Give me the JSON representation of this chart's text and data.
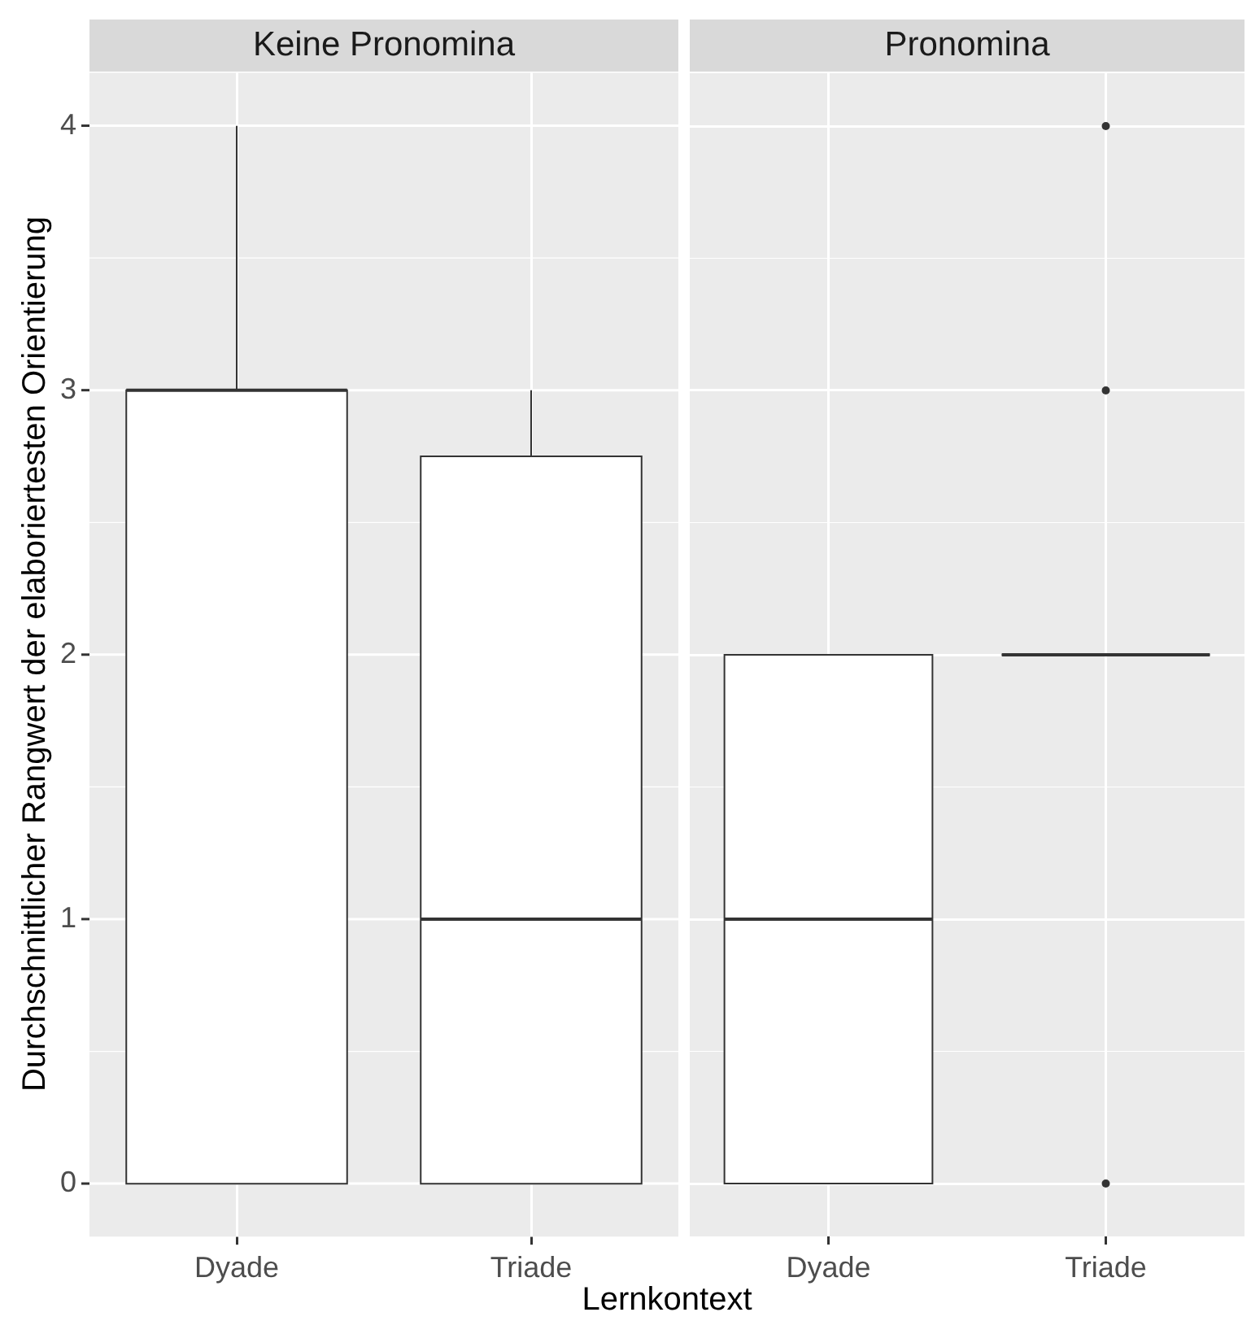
{
  "chart_data": [
    {
      "type": "box",
      "title": "Keine Pronomina",
      "xlabel": "Lernkontext",
      "ylabel": "Durchschnittlicher Rangwert der elaboriertesten Orientierung",
      "categories": [
        "Dyade",
        "Triade"
      ],
      "boxes": [
        {
          "low": 0,
          "q1": 0,
          "median": 3,
          "q3": 3,
          "high": 4
        },
        {
          "low": 0,
          "q1": 0,
          "median": 1,
          "q3": 2.75,
          "high": 3
        }
      ],
      "ylim": [
        -0.2,
        4.2
      ],
      "yticks": [
        0,
        1,
        2,
        3,
        4
      ],
      "grid": true
    },
    {
      "type": "box",
      "title": "Pronomina",
      "categories": [
        "Dyade",
        "Triade"
      ],
      "boxes": [
        {
          "low": 0,
          "q1": 0,
          "median": 1,
          "q3": 2,
          "high": 2
        },
        {
          "low": 2,
          "q1": 2,
          "median": 2,
          "q3": 2,
          "high": 2,
          "outliers": [
            0,
            3,
            4
          ]
        }
      ],
      "ylim": [
        -0.2,
        4.2
      ],
      "yticks": [
        0,
        1,
        2,
        3,
        4
      ],
      "grid": true,
      "tick_labels": "x"
    }
  ]
}
